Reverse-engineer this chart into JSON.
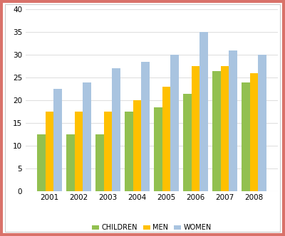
{
  "years": [
    "2001",
    "2002",
    "2003",
    "2004",
    "2005",
    "2006",
    "2007",
    "2008"
  ],
  "children": [
    12.5,
    12.5,
    12.5,
    17.5,
    18.5,
    21.5,
    26.5,
    24.0
  ],
  "men": [
    17.5,
    17.5,
    17.5,
    20.0,
    23.0,
    27.5,
    27.5,
    26.0
  ],
  "women": [
    22.5,
    24.0,
    27.0,
    28.5,
    30.0,
    35.0,
    31.0,
    30.0
  ],
  "colors": {
    "children": "#92C050",
    "men": "#FFC000",
    "women": "#A9C4E0"
  },
  "legend_labels": [
    "CHILDREN",
    "MEN",
    "WOMEN"
  ],
  "ylim": [
    0,
    40
  ],
  "yticks": [
    0,
    5,
    10,
    15,
    20,
    25,
    30,
    35,
    40
  ],
  "bar_width": 0.28,
  "background_color": "#FFFFFF",
  "outer_border_color": "#D9726A",
  "inner_border_color": "#C8C8C8",
  "grid_color": "#E0E0E0"
}
